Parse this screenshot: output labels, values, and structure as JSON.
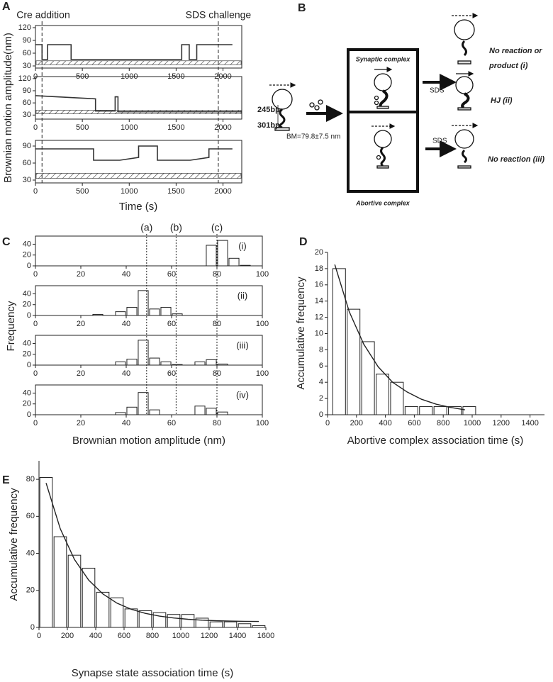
{
  "panel_labels": [
    "A",
    "B",
    "C",
    "D",
    "E"
  ],
  "chart_data": [
    {
      "type": "line",
      "xlabel": "Time (s)",
      "ylabel": "Brownian motion amplitude(nm)",
      "xlim": [
        0,
        2200
      ],
      "xticks": [
        0,
        500,
        1000,
        1500,
        2000
      ],
      "reference_band": [
        33,
        42
      ],
      "annotations": [
        {
          "text": "Cre addition",
          "x": 70
        },
        {
          "text": "SDS challenge",
          "x": 1950
        }
      ],
      "panels": [
        {
          "ylim": [
            25,
            125
          ],
          "yticks": [
            30,
            60,
            90,
            120
          ],
          "series": [
            {
              "color": "#333333",
              "x": [
                0,
                70,
                70,
                130,
                130,
                380,
                380,
                1560,
                1560,
                1640,
                1640,
                1720,
                1720,
                2100
              ],
              "values": [
                80,
                80,
                45,
                45,
                80,
                80,
                45,
                45,
                80,
                80,
                45,
                45,
                80,
                80
              ]
            }
          ]
        },
        {
          "ylim": [
            20,
            125
          ],
          "yticks": [
            30,
            60,
            90,
            120
          ],
          "series": [
            {
              "color": "#333333",
              "x": [
                0,
                640,
                640,
                850,
                850,
                880,
                880,
                2200
              ],
              "values": [
                78,
                70,
                40,
                40,
                75,
                75,
                38,
                38
              ]
            }
          ]
        },
        {
          "ylim": [
            25,
            100
          ],
          "yticks": [
            30,
            60,
            90
          ],
          "series": [
            {
              "color": "#333333",
              "x": [
                0,
                620,
                620,
                900,
                1100,
                1100,
                1300,
                1300,
                1650,
                1850,
                1850,
                2100
              ],
              "values": [
                85,
                85,
                65,
                65,
                70,
                90,
                90,
                65,
                65,
                70,
                85,
                85
              ]
            }
          ]
        }
      ]
    },
    {
      "type": "histogram",
      "xlabel": "Brownian motion amplitude (nm)",
      "ylabel": "Frequency",
      "xlim": [
        0,
        100
      ],
      "xticks": [
        0,
        20,
        40,
        60,
        80,
        100
      ],
      "bins": [
        25,
        30,
        35,
        40,
        45,
        50,
        55,
        60,
        65,
        70,
        75,
        80,
        85,
        90,
        95
      ],
      "vlines": [
        {
          "value": 49,
          "label": "(a)"
        },
        {
          "value": 62,
          "label": "(b)"
        },
        {
          "value": 80,
          "label": "(c)"
        }
      ],
      "color": "#ffffff",
      "panels": [
        {
          "label": "(i)",
          "ylim": [
            0,
            55
          ],
          "yticks": [
            0,
            20,
            40
          ],
          "values": [
            0,
            0,
            0,
            0,
            0,
            0,
            0,
            0,
            0,
            0,
            38,
            47,
            14,
            1
          ]
        },
        {
          "label": "(ii)",
          "ylim": [
            0,
            55
          ],
          "yticks": [
            0,
            20,
            40
          ],
          "values": [
            2,
            0,
            7,
            15,
            46,
            12,
            15,
            3,
            0,
            0,
            0,
            0,
            0,
            0
          ]
        },
        {
          "label": "(iii)",
          "ylim": [
            0,
            55
          ],
          "yticks": [
            0,
            20,
            40
          ],
          "values": [
            0,
            0,
            6,
            11,
            46,
            13,
            6,
            1,
            0,
            6,
            10,
            2,
            0,
            0
          ]
        },
        {
          "label": "(iv)",
          "ylim": [
            0,
            55
          ],
          "yticks": [
            0,
            20,
            40
          ],
          "values": [
            0,
            0,
            4,
            14,
            41,
            9,
            0,
            0,
            0,
            16,
            12,
            5,
            0,
            0
          ]
        }
      ]
    },
    {
      "type": "histogram",
      "xlabel": "Abortive complex association time (s)",
      "ylabel": "Accumulative frequency",
      "xlim": [
        0,
        1500
      ],
      "xticks": [
        0,
        200,
        400,
        600,
        800,
        1000,
        1200,
        1400
      ],
      "ylim": [
        0,
        20
      ],
      "yticks": [
        0,
        2,
        4,
        6,
        8,
        10,
        12,
        14,
        16,
        18,
        20
      ],
      "bins": [
        30,
        130,
        230,
        330,
        430,
        530,
        630,
        730,
        830,
        930,
        1030
      ],
      "values": [
        18,
        13,
        9,
        5,
        4,
        1,
        1,
        1,
        1,
        1
      ],
      "color": "#ffffff",
      "fit": {
        "x": [
          50,
          150,
          250,
          350,
          450,
          550,
          650,
          750,
          850,
          950
        ],
        "values": [
          18.5,
          12.7,
          8.7,
          5.9,
          4.0,
          2.8,
          1.9,
          1.3,
          0.9,
          0.6
        ]
      }
    },
    {
      "type": "histogram",
      "xlabel": "Synapse state association time (s)",
      "ylabel": "Accumulative frequency",
      "xlim": [
        0,
        1600
      ],
      "xticks": [
        0,
        200,
        400,
        600,
        800,
        1000,
        1200,
        1400,
        1600
      ],
      "ylim": [
        0,
        90
      ],
      "yticks": [
        0,
        20,
        40,
        60,
        80
      ],
      "bins": [
        0,
        100,
        200,
        300,
        400,
        500,
        600,
        700,
        800,
        900,
        1000,
        1100,
        1200,
        1300,
        1400,
        1500,
        1600
      ],
      "values": [
        81,
        49,
        39,
        32,
        19,
        16,
        10,
        9,
        8,
        7,
        7,
        5,
        3,
        3,
        2,
        1
      ],
      "color": "#ffffff",
      "fit": {
        "x": [
          50,
          150,
          250,
          350,
          450,
          550,
          650,
          750,
          850,
          950,
          1050,
          1150,
          1250,
          1350,
          1450,
          1550
        ],
        "values": [
          78,
          53.3,
          36.7,
          25.6,
          18.1,
          13.1,
          9.8,
          7.6,
          6.1,
          5.1,
          4.4,
          3.9,
          3.6,
          3.4,
          3.3,
          3.2
        ]
      }
    }
  ],
  "diagram": {
    "tether_top": "245bp",
    "tether_bottom": "301bp",
    "bm": "BM=79.8±7.5 nm",
    "synaptic": "Synaptic complex",
    "abortive": "Abortive complex",
    "sds_top": "SDS",
    "sds_bottom": "SDS",
    "outcome_1a": "No reaction or",
    "outcome_1b": "product (i)",
    "outcome_2": "HJ (ii)",
    "outcome_3": "No reaction (iii)"
  }
}
